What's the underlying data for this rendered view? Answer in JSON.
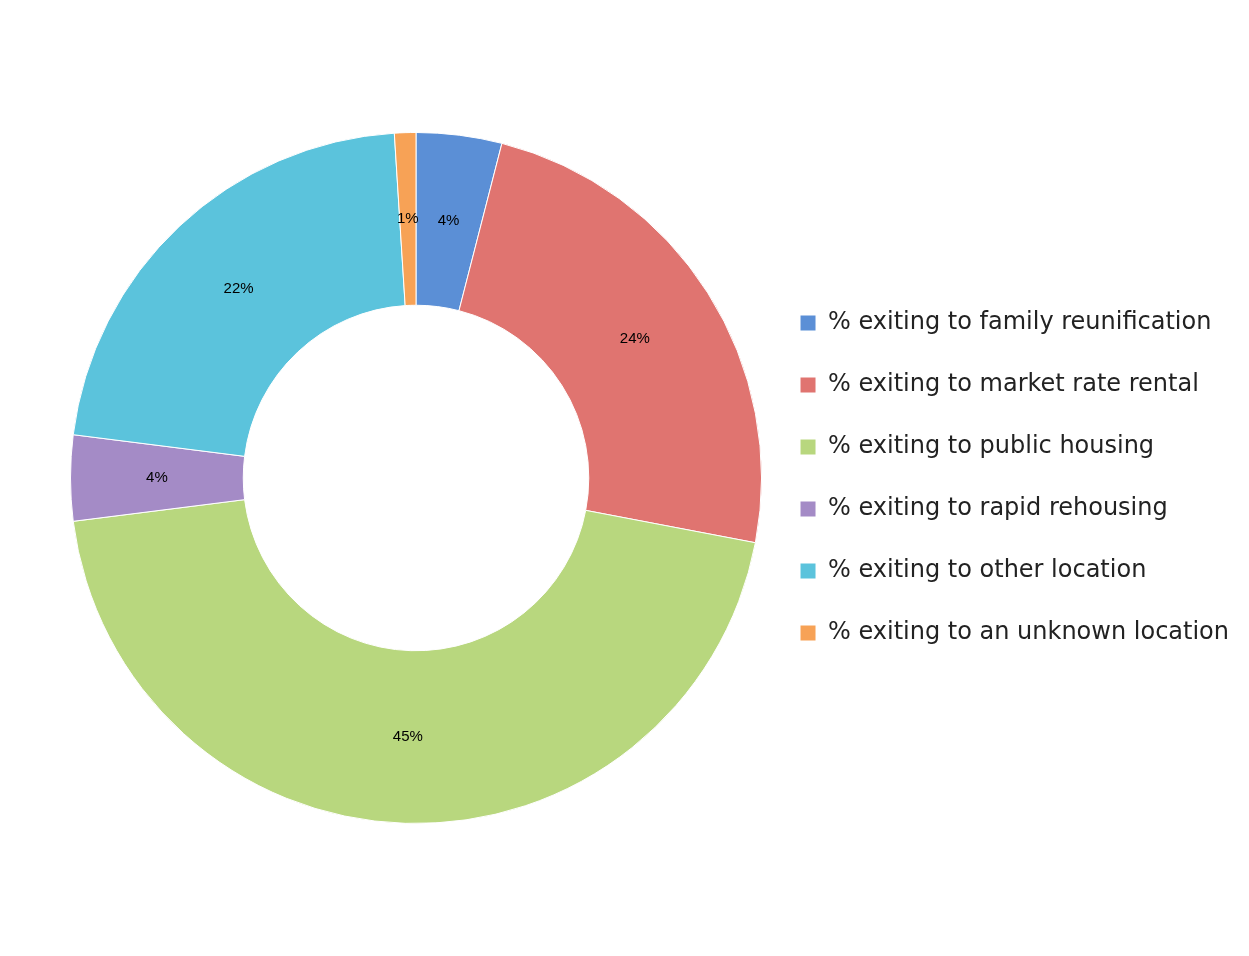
{
  "chart_data": {
    "type": "donut",
    "categories": [
      "% exiting to family reunification",
      "% exiting to market rate rental",
      "% exiting to public housing",
      "% exiting to rapid rehousing",
      "% exiting to other location",
      "% exiting to an unknown location"
    ],
    "values": [
      4,
      24,
      45,
      4,
      22,
      1
    ],
    "value_labels": [
      "4%",
      "24%",
      "45%",
      "4%",
      "22%",
      "1%"
    ],
    "colors": [
      "#5b8fd6",
      "#e07470",
      "#b8d77e",
      "#a48bc6",
      "#5bc3dc",
      "#f7a256"
    ],
    "legend": "right"
  }
}
